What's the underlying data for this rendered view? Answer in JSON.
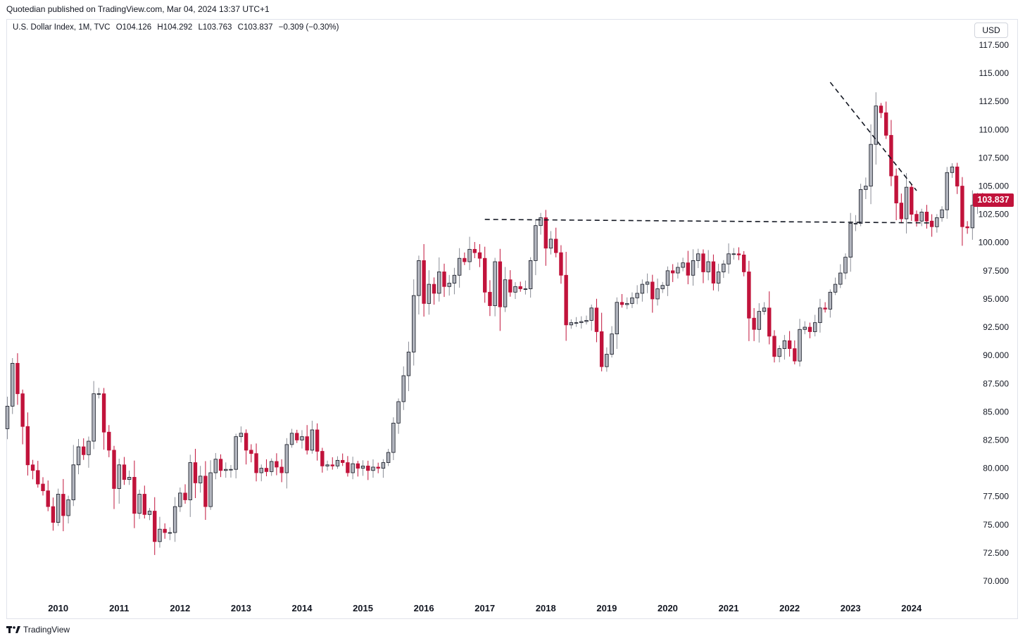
{
  "credit": "Quotedian published on TradingView.com, Mar 04, 2024 13:37 UTC+1",
  "legend": {
    "symbol": "U.S. Dollar Index, 1M, TVC",
    "open": "O104.126",
    "high": "H104.292",
    "low": "L103.763",
    "close": "C103.837",
    "change": "−0.309 (−0.30%)"
  },
  "currency": "USD",
  "last_price_label": "103.837",
  "brand": "TradingView",
  "colors": {
    "up_body": "#b2b5be",
    "down_body": "#c1133b",
    "outline": "#131722",
    "trendline": "#131722"
  },
  "chart_data": {
    "type": "candlestick",
    "timeframe": "1M",
    "ylim": [
      68.5,
      119
    ],
    "yticks": [
      70,
      72.5,
      75,
      77.5,
      80,
      82.5,
      85,
      87.5,
      90,
      92.5,
      95,
      97.5,
      100,
      102.5,
      105,
      107.5,
      110,
      112.5,
      115,
      117.5
    ],
    "ytick_labels": [
      "70.000",
      "72.500",
      "75.000",
      "77.500",
      "80.000",
      "82.500",
      "85.000",
      "87.500",
      "90.000",
      "92.500",
      "95.000",
      "97.500",
      "100.000",
      "102.500",
      "105.000",
      "107.500",
      "110.000",
      "112.500",
      "115.000",
      "117.500"
    ],
    "xticks": [
      "2010",
      "2011",
      "2012",
      "2013",
      "2014",
      "2015",
      "2016",
      "2017",
      "2018",
      "2019",
      "2020",
      "2021",
      "2022",
      "2023",
      "2024"
    ],
    "x_start": "2009-03",
    "close": [
      85.5,
      89.3,
      86.6,
      83.7,
      80.3,
      79.8,
      78.6,
      78.0,
      76.6,
      75.2,
      77.7,
      75.8,
      77.2,
      80.3,
      81.9,
      81.2,
      82.4,
      86.6,
      86.6,
      83.2,
      81.6,
      78.2,
      80.3,
      79.0,
      79.2,
      76.0,
      77.7,
      75.9,
      76.2,
      73.5,
      74.6,
      74.3,
      74.3,
      76.6,
      77.8,
      77.2,
      80.5,
      78.7,
      79.3,
      76.6,
      79.6,
      80.8,
      79.8,
      79.9,
      79.9,
      82.8,
      83.1,
      81.6,
      81.3,
      79.6,
      80.0,
      79.7,
      80.6,
      80.1,
      79.6,
      82.1,
      83.1,
      82.5,
      82.8,
      81.6,
      83.4,
      81.5,
      80.2,
      80.3,
      80.2,
      80.7,
      80.5,
      79.6,
      80.4,
      80.0,
      80.2,
      79.8,
      80.1,
      80.0,
      80.5,
      81.4,
      84.0,
      85.9,
      88.2,
      90.3,
      95.3,
      98.4,
      94.6,
      96.3,
      95.5,
      97.4,
      96.1,
      96.4,
      97.1,
      98.6,
      98.3,
      99.4,
      99.1,
      98.6,
      95.6,
      94.4,
      98.3,
      94.3,
      96.7,
      95.6,
      96.1,
      95.9,
      95.9,
      98.4,
      101.5,
      102.2,
      99.5,
      100.3,
      99.1,
      97.1,
      92.7,
      92.9,
      92.9,
      93.0,
      93.1,
      94.2,
      92.1,
      89.0,
      90.1,
      91.9,
      94.7,
      94.5,
      94.6,
      95.1,
      95.5,
      96.3,
      96.5,
      95.0,
      95.9,
      96.2,
      97.5,
      97.3,
      97.8,
      98.2,
      97.1,
      98.4,
      99.0,
      97.4,
      98.3,
      96.4,
      97.4,
      98.1,
      99.0,
      99.0,
      98.9,
      97.4,
      93.3,
      92.3,
      93.9,
      94.2,
      91.7,
      89.9,
      90.6,
      91.3,
      90.6,
      89.5,
      92.3,
      92.5,
      92.1,
      92.9,
      94.2,
      94.1,
      95.6,
      96.3,
      97.3,
      98.7,
      101.7,
      101.7,
      104.7,
      105.0,
      108.7,
      112.1,
      111.5,
      109.5,
      105.9,
      103.5,
      102.1,
      104.9,
      102.5,
      101.9,
      102.7,
      101.9,
      101.4,
      102.2,
      102.9,
      106.2,
      106.7,
      105.0,
      101.4,
      101.3,
      103.3,
      103.9,
      103.8
    ],
    "annotations": [
      {
        "type": "horizontal-dashed-line",
        "level": 101.8,
        "from": "2017-01",
        "to": "2024-04"
      },
      {
        "type": "dashed-trendline",
        "from": [
          "2022-09",
          114.2
        ],
        "to": [
          "2024-02",
          104.6
        ]
      }
    ]
  }
}
